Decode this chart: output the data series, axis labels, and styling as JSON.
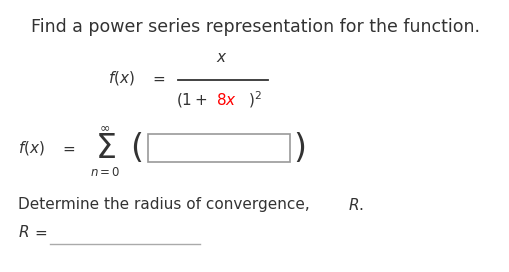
{
  "background_color": "#ffffff",
  "title_text": "Find a power series representation for the function.",
  "title_fontsize": 12.5,
  "text_color": "#333333",
  "red_color": "#ff0000",
  "box_edge_color": "#999999",
  "box_color": "#ffffff",
  "underline_color": "#aaaaaa",
  "font_family": "DejaVu Sans",
  "fig_width": 5.1,
  "fig_height": 2.72,
  "dpi": 100
}
